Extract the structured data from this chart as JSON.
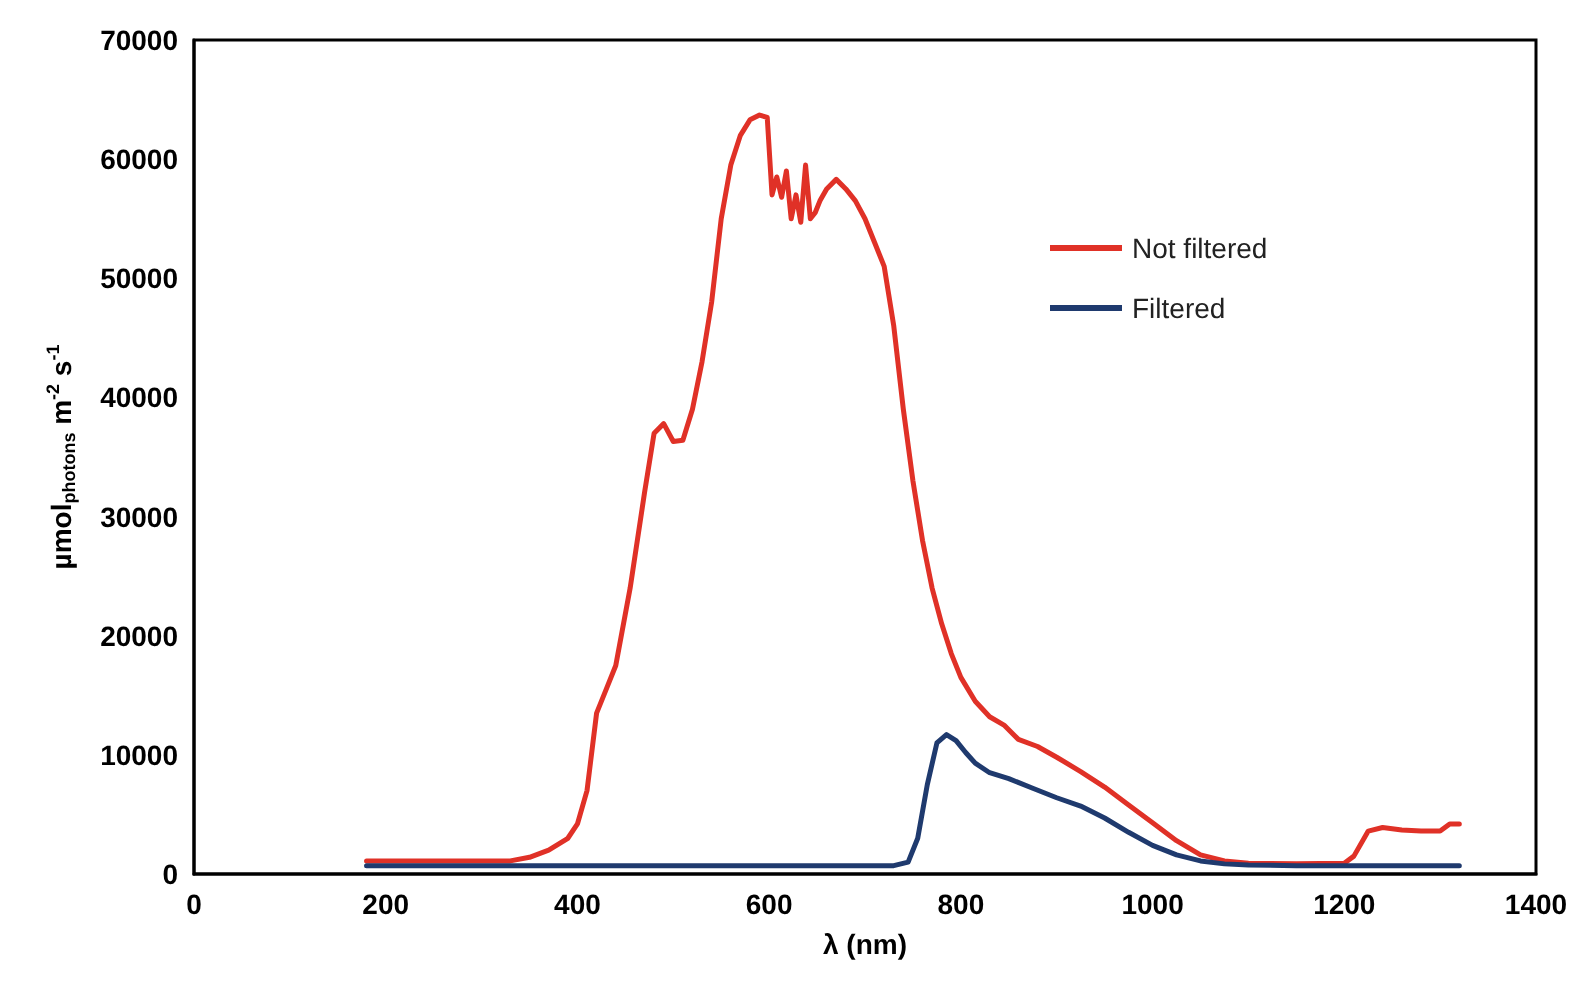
{
  "chart_data": {
    "type": "line",
    "xlabel": "λ (nm)",
    "ylabel": "µmol$_{photons}$ m$^{-2}$ s$^{-1}$",
    "xlim": [
      0,
      1400
    ],
    "xticks": [
      0,
      200,
      400,
      600,
      800,
      1000,
      1200,
      1400
    ],
    "ylim": [
      0,
      70000
    ],
    "yticks": [
      0,
      10000,
      20000,
      30000,
      40000,
      50000,
      60000,
      70000
    ],
    "grid": false,
    "legend": "right",
    "marker": "none",
    "line_style": "solid",
    "series": [
      {
        "name": "Not filtered",
        "color": "#e03127",
        "x": [
          180,
          250,
          300,
          330,
          350,
          370,
          390,
          400,
          410,
          420,
          430,
          440,
          455,
          470,
          480,
          490,
          500,
          510,
          520,
          530,
          540,
          550,
          560,
          570,
          580,
          590,
          598,
          603,
          608,
          613,
          618,
          623,
          628,
          633,
          638,
          643,
          648,
          653,
          660,
          670,
          680,
          690,
          700,
          710,
          720,
          730,
          740,
          750,
          760,
          770,
          780,
          790,
          800,
          815,
          830,
          845,
          860,
          880,
          900,
          925,
          950,
          975,
          1000,
          1025,
          1050,
          1075,
          1100,
          1150,
          1200,
          1210,
          1225,
          1240,
          1260,
          1280,
          1300,
          1310,
          1320
        ],
        "values": [
          1100,
          1100,
          1100,
          1100,
          1400,
          2000,
          3000,
          4200,
          7000,
          13500,
          15500,
          17500,
          24000,
          32000,
          37000,
          37800,
          36300,
          36400,
          39000,
          43000,
          48000,
          55000,
          59500,
          62000,
          63300,
          63700,
          63500,
          57000,
          58500,
          56800,
          59000,
          55000,
          57000,
          54700,
          59500,
          55000,
          55500,
          56500,
          57500,
          58300,
          57500,
          56500,
          55000,
          53000,
          51000,
          46000,
          39000,
          33000,
          28000,
          24000,
          21000,
          18500,
          16500,
          14500,
          13200,
          12500,
          11300,
          10700,
          9800,
          8600,
          7300,
          5800,
          4300,
          2800,
          1600,
          1100,
          900,
          850,
          900,
          1500,
          3600,
          3900,
          3700,
          3600,
          3600,
          4200,
          4200
        ]
      },
      {
        "name": "Filtered",
        "color": "#1f3a6e",
        "x": [
          180,
          400,
          600,
          730,
          745,
          755,
          765,
          775,
          785,
          795,
          805,
          815,
          830,
          850,
          875,
          900,
          925,
          950,
          975,
          1000,
          1025,
          1050,
          1075,
          1100,
          1150,
          1200,
          1320
        ],
        "values": [
          700,
          700,
          700,
          700,
          1000,
          3000,
          7500,
          11000,
          11700,
          11200,
          10200,
          9300,
          8500,
          8000,
          7200,
          6400,
          5700,
          4700,
          3500,
          2400,
          1600,
          1100,
          850,
          750,
          700,
          700,
          700
        ]
      }
    ]
  }
}
